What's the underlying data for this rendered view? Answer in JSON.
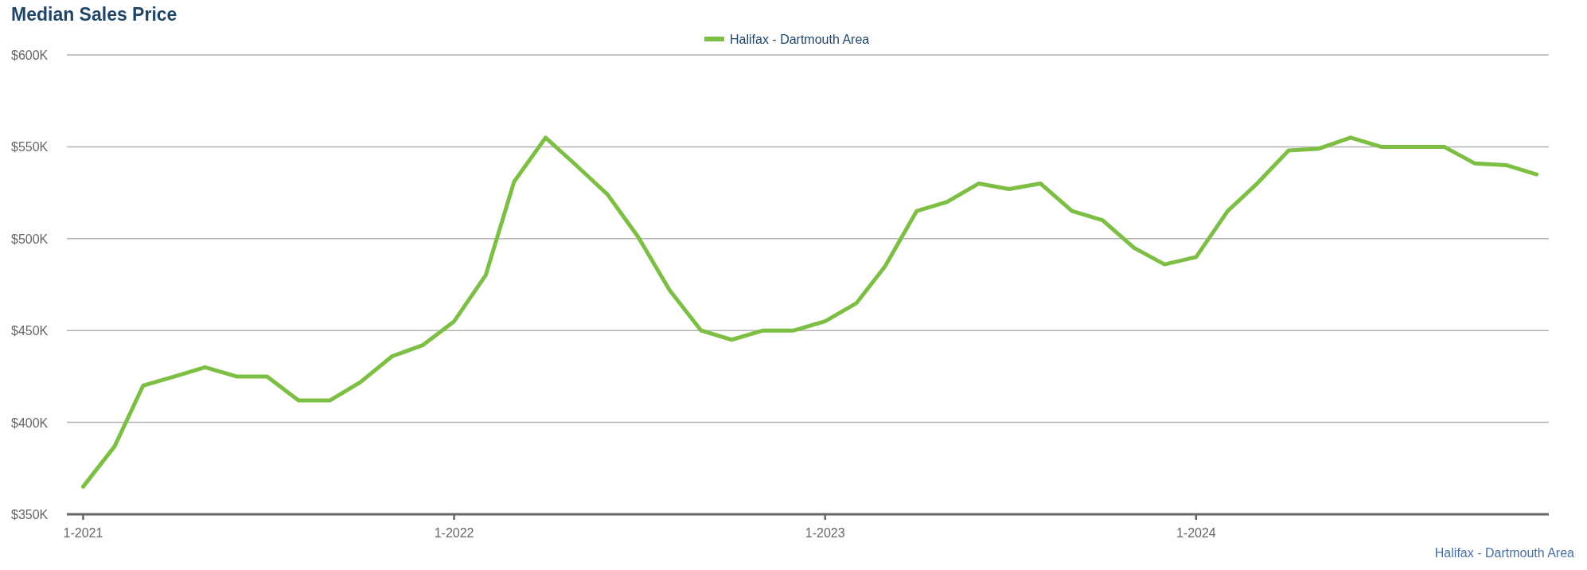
{
  "chart_data": {
    "type": "line",
    "title": "Median Sales Price",
    "x": [
      "2021-01",
      "2021-02",
      "2021-03",
      "2021-04",
      "2021-05",
      "2021-06",
      "2021-07",
      "2021-08",
      "2021-09",
      "2021-10",
      "2021-11",
      "2021-12",
      "2022-01",
      "2022-02",
      "2022-03",
      "2022-04",
      "2022-05",
      "2022-06",
      "2022-07",
      "2022-08",
      "2022-09",
      "2022-10",
      "2022-11",
      "2022-12",
      "2023-01",
      "2023-02",
      "2023-03",
      "2023-04",
      "2023-05",
      "2023-06",
      "2023-07",
      "2023-08",
      "2023-09",
      "2023-10",
      "2023-11",
      "2023-12",
      "2024-01",
      "2024-02",
      "2024-03",
      "2024-04",
      "2024-05",
      "2024-06",
      "2024-07",
      "2024-08",
      "2024-09",
      "2024-10",
      "2024-11",
      "2024-12"
    ],
    "series": [
      {
        "name": "Halifax - Dartmouth Area",
        "color": "#7dbf44",
        "values": [
          365000,
          387000,
          420000,
          425000,
          430000,
          425000,
          425000,
          412000,
          412000,
          422000,
          436000,
          442000,
          455000,
          480000,
          531000,
          555000,
          540000,
          524000,
          501000,
          472000,
          450000,
          445000,
          450000,
          450000,
          455000,
          465000,
          485000,
          515000,
          520000,
          530000,
          527000,
          530000,
          515000,
          510000,
          495000,
          486000,
          490000,
          515000,
          530000,
          548000,
          549000,
          555000,
          550000,
          550000,
          550000,
          541000,
          540000,
          535000
        ]
      }
    ],
    "xlim": [
      "2020-12-16",
      "2024-12-13"
    ],
    "xticks": [
      {
        "value": "2021-01",
        "label": "1-2021"
      },
      {
        "value": "2022-01",
        "label": "1-2022"
      },
      {
        "value": "2023-01",
        "label": "1-2023"
      },
      {
        "value": "2024-01",
        "label": "1-2024"
      }
    ],
    "ylim": [
      350000,
      600000
    ],
    "yticks": [
      {
        "value": 350000,
        "label": "$350K"
      },
      {
        "value": 400000,
        "label": "$400K"
      },
      {
        "value": 450000,
        "label": "$450K"
      },
      {
        "value": 500000,
        "label": "$500K"
      },
      {
        "value": 550000,
        "label": "$550K"
      },
      {
        "value": 600000,
        "label": "$600K"
      }
    ],
    "grid": "y",
    "legend": "top",
    "marker": "none",
    "line_style": "solid",
    "annotations": [
      "Halifax - Dartmouth Area"
    ]
  }
}
